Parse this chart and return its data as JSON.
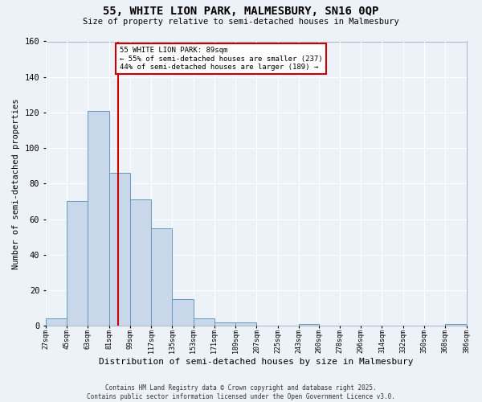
{
  "title": "55, WHITE LION PARK, MALMESBURY, SN16 0QP",
  "subtitle": "Size of property relative to semi-detached houses in Malmesbury",
  "xlabel": "Distribution of semi-detached houses by size in Malmesbury",
  "ylabel": "Number of semi-detached properties",
  "bin_edges": [
    27,
    45,
    63,
    81,
    99,
    117,
    135,
    153,
    171,
    189,
    207,
    225,
    243,
    260,
    278,
    296,
    314,
    332,
    350,
    368,
    386
  ],
  "bin_counts": [
    4,
    70,
    121,
    86,
    71,
    55,
    15,
    4,
    2,
    2,
    0,
    0,
    1,
    0,
    0,
    0,
    0,
    0,
    0,
    1
  ],
  "bar_color": "#c8d8ea",
  "bar_edge_color": "#6699bb",
  "reference_line_x": 89,
  "reference_line_color": "#cc0000",
  "annotation_box_text": "55 WHITE LION PARK: 89sqm\n← 55% of semi-detached houses are smaller (237)\n44% of semi-detached houses are larger (189) →",
  "annotation_box_color": "#cc0000",
  "background_color": "#edf2f8",
  "grid_color": "#ffffff",
  "ylim": [
    0,
    160
  ],
  "tick_labels": [
    "27sqm",
    "45sqm",
    "63sqm",
    "81sqm",
    "99sqm",
    "117sqm",
    "135sqm",
    "153sqm",
    "171sqm",
    "189sqm",
    "207sqm",
    "225sqm",
    "243sqm",
    "260sqm",
    "278sqm",
    "296sqm",
    "314sqm",
    "332sqm",
    "350sqm",
    "368sqm",
    "386sqm"
  ],
  "footer_line1": "Contains HM Land Registry data © Crown copyright and database right 2025.",
  "footer_line2": "Contains public sector information licensed under the Open Government Licence v3.0."
}
